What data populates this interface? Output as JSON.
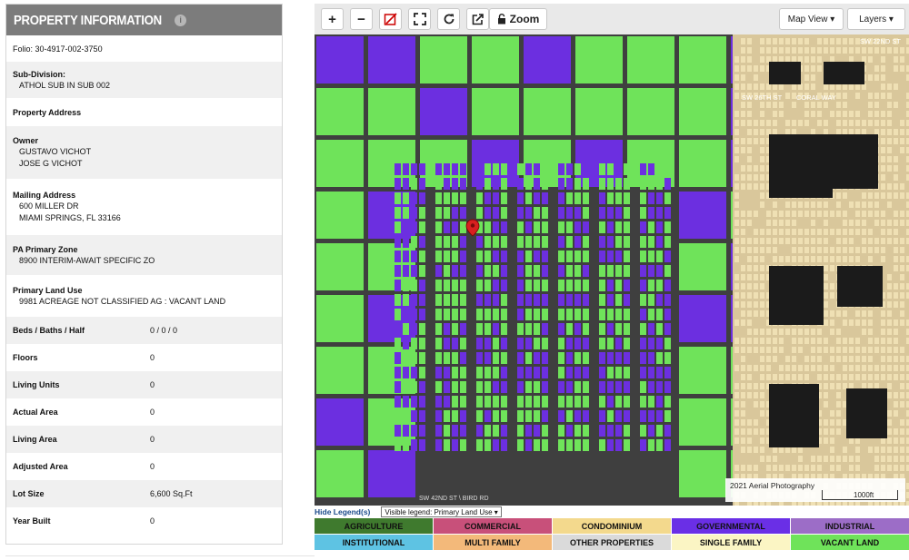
{
  "panel": {
    "title": "PROPERTY INFORMATION",
    "info_icon": "i",
    "folio": "Folio: 30-4917-002-3750",
    "subdivision_label": "Sub-Division:",
    "subdivision_value": "ATHOL SUB IN SUB 002",
    "property_address_label": "Property Address",
    "owner_label": "Owner",
    "owner_1": "GUSTAVO VICHOT",
    "owner_2": "JOSE G VICHOT",
    "mailing_label": "Mailing Address",
    "mailing_1": "600 MILLER DR",
    "mailing_2": "MIAMI SPRINGS, FL 33166",
    "zone_label": "PA Primary Zone",
    "zone_value": "8900 INTERIM-AWAIT SPECIFIC ZO",
    "landuse_label": "Primary Land Use",
    "landuse_value": "9981 ACREAGE NOT CLASSIFIED AG : VACANT LAND",
    "beds_label": "Beds / Baths / Half",
    "beds_value": "0 / 0 / 0",
    "floors_label": "Floors",
    "floors_value": "0",
    "living_units_label": "Living Units",
    "living_units_value": "0",
    "actual_area_label": "Actual Area",
    "actual_area_value": "0",
    "living_area_label": "Living Area",
    "living_area_value": "0",
    "adjusted_area_label": "Adjusted Area",
    "adjusted_area_value": "0",
    "lot_size_label": "Lot Size",
    "lot_size_value": "6,600 Sq.Ft",
    "year_built_label": "Year Built",
    "year_built_value": "0"
  },
  "toolbar": {
    "zoom_in": "+",
    "zoom_out": "−",
    "zoom_label": "Zoom",
    "map_view": "Map View ▾",
    "layers": "Layers ▾"
  },
  "map": {
    "street_sw_26th": "SW 26TH ST",
    "street_coral_way": "CORAL WAY",
    "street_sw_22": "SW 22ND ST",
    "street_bird_rd": "SW 42ND ST \\ BIRD RD",
    "attribution": "2021 Aerial Photography",
    "scale": "1000ft",
    "colors": {
      "green": "#6fe35a",
      "purple": "#6c2fe0",
      "road": "#5a5a5a",
      "cream": "#efe0b4"
    }
  },
  "legend": {
    "hide_label": "Hide Legend(s)",
    "visible_label": "Visible legend: Primary Land Use ▾",
    "items": [
      {
        "label": "AGRICULTURE",
        "color": "#3f7a2e"
      },
      {
        "label": "COMMERCIAL",
        "color": "#c8507a"
      },
      {
        "label": "CONDOMINIUM",
        "color": "#f3d98d"
      },
      {
        "label": "GOVERNMENTAL",
        "color": "#6a2fe6"
      },
      {
        "label": "INDUSTRIAL",
        "color": "#9c6dc7"
      },
      {
        "label": "INSTITUTIONAL",
        "color": "#5ec3e3"
      },
      {
        "label": "MULTI FAMILY",
        "color": "#f3b97a"
      },
      {
        "label": "OTHER PROPERTIES",
        "color": "#dadada"
      },
      {
        "label": "SINGLE FAMILY",
        "color": "#fbf5c4"
      },
      {
        "label": "VACANT LAND",
        "color": "#6fe35a"
      }
    ]
  }
}
